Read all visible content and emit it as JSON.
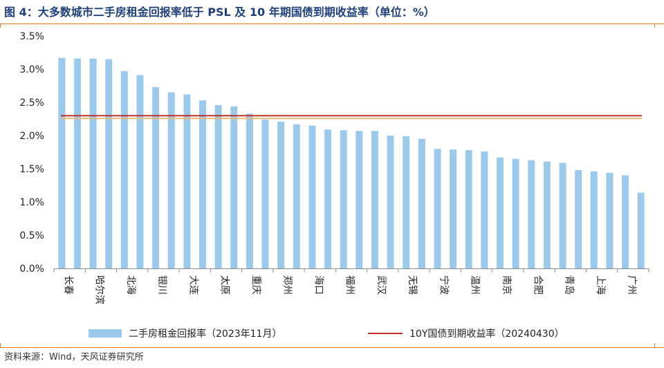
{
  "title": "图 4：大多数城市二手房租金回报率低于 PSL 及 10 年期国债到期收益率（单位：%）",
  "source": "资料来源：Wind，天风证券研究所",
  "colors": {
    "bar": "#9cc8ea",
    "line": "#c0312b",
    "line_shadow": "#e9b97a",
    "title": "#1f3f77",
    "rule": "#e07b26"
  },
  "chart_data": {
    "type": "bar",
    "ylim": [
      0,
      3.5
    ],
    "yticks": [
      "0.0%",
      "0.5%",
      "1.0%",
      "1.5%",
      "2.0%",
      "2.5%",
      "3.0%",
      "3.5%"
    ],
    "categories": [
      "长春",
      "",
      "哈尔滨",
      "",
      "北海",
      "",
      "银川",
      "",
      "大连",
      "",
      "太原",
      "",
      "重庆",
      "",
      "郑州",
      "",
      "海口",
      "",
      "福州",
      "",
      "武汉",
      "",
      "无锡",
      "",
      "宁波",
      "",
      "温州",
      "",
      "南京",
      "",
      "合肥",
      "",
      "青岛",
      "",
      "上海",
      "",
      "广州",
      ""
    ],
    "series": [
      {
        "name": "二手房租金回报率（2023年11月）",
        "type": "bar",
        "values": [
          3.17,
          3.16,
          3.16,
          3.15,
          2.97,
          2.91,
          2.73,
          2.65,
          2.62,
          2.53,
          2.46,
          2.44,
          2.33,
          2.24,
          2.21,
          2.17,
          2.15,
          2.09,
          2.08,
          2.07,
          2.07,
          2.0,
          1.99,
          1.95,
          1.8,
          1.79,
          1.78,
          1.76,
          1.67,
          1.65,
          1.63,
          1.61,
          1.59,
          1.48,
          1.46,
          1.44,
          1.4,
          1.14
        ]
      },
      {
        "name": "10Y国债到期收益率（20240430）",
        "type": "line",
        "value": 2.3
      }
    ]
  }
}
